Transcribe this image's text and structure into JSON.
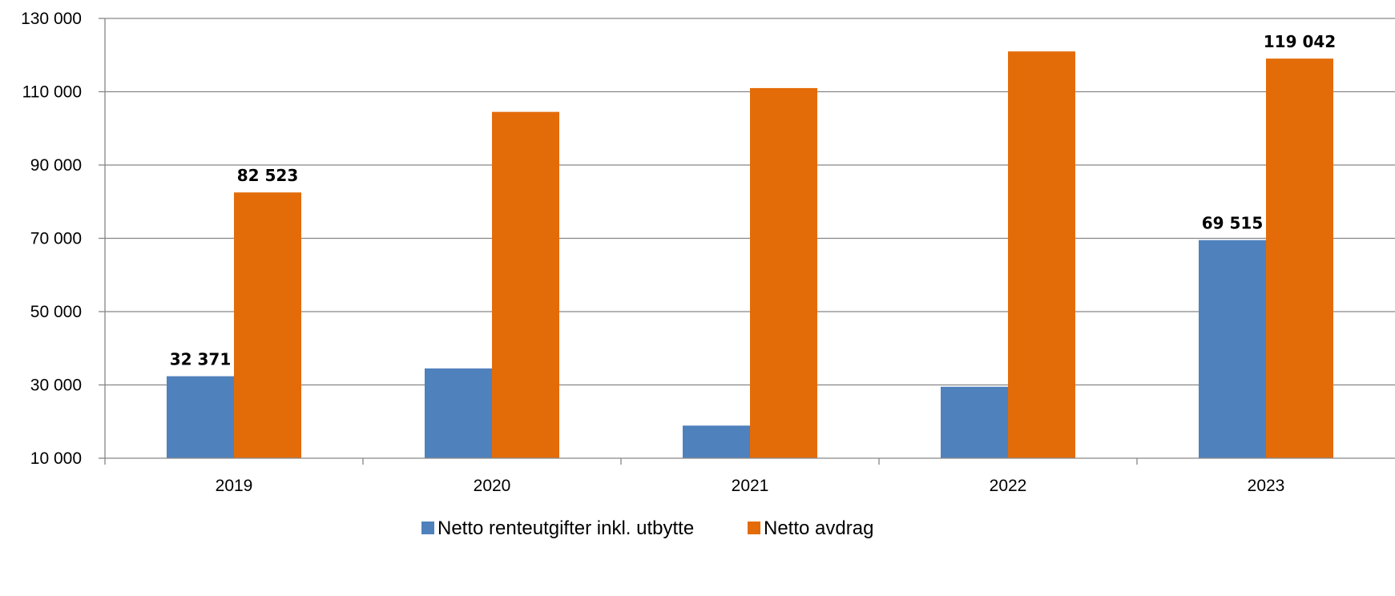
{
  "chart_data": {
    "type": "bar",
    "categories": [
      "2019",
      "2020",
      "2021",
      "2022",
      "2023"
    ],
    "series": [
      {
        "name": "Netto renteutgifter inkl. utbytte",
        "values": [
          32371,
          34500,
          18900,
          29500,
          69515
        ],
        "color": "#4F81BD"
      },
      {
        "name": "Netto avdrag",
        "values": [
          82523,
          104500,
          111000,
          121000,
          119042
        ],
        "color": "#E36C09"
      }
    ],
    "data_labels": [
      {
        "series": 0,
        "index": 0,
        "text": "32 371"
      },
      {
        "series": 1,
        "index": 0,
        "text": "82 523"
      },
      {
        "series": 0,
        "index": 4,
        "text": "69 515"
      },
      {
        "series": 1,
        "index": 4,
        "text": "119 042"
      }
    ],
    "yticks": [
      10000,
      30000,
      50000,
      70000,
      90000,
      110000,
      130000
    ],
    "ytick_labels": [
      "10 000",
      "30 000",
      "50 000",
      "70 000",
      "90 000",
      "110 000",
      "130 000"
    ],
    "ylim": [
      10000,
      130000
    ],
    "title": "",
    "xlabel": "",
    "ylabel": "",
    "grid": true,
    "legend_position": "bottom-center",
    "axis_color": "#868686",
    "grid_color": "#868686"
  }
}
